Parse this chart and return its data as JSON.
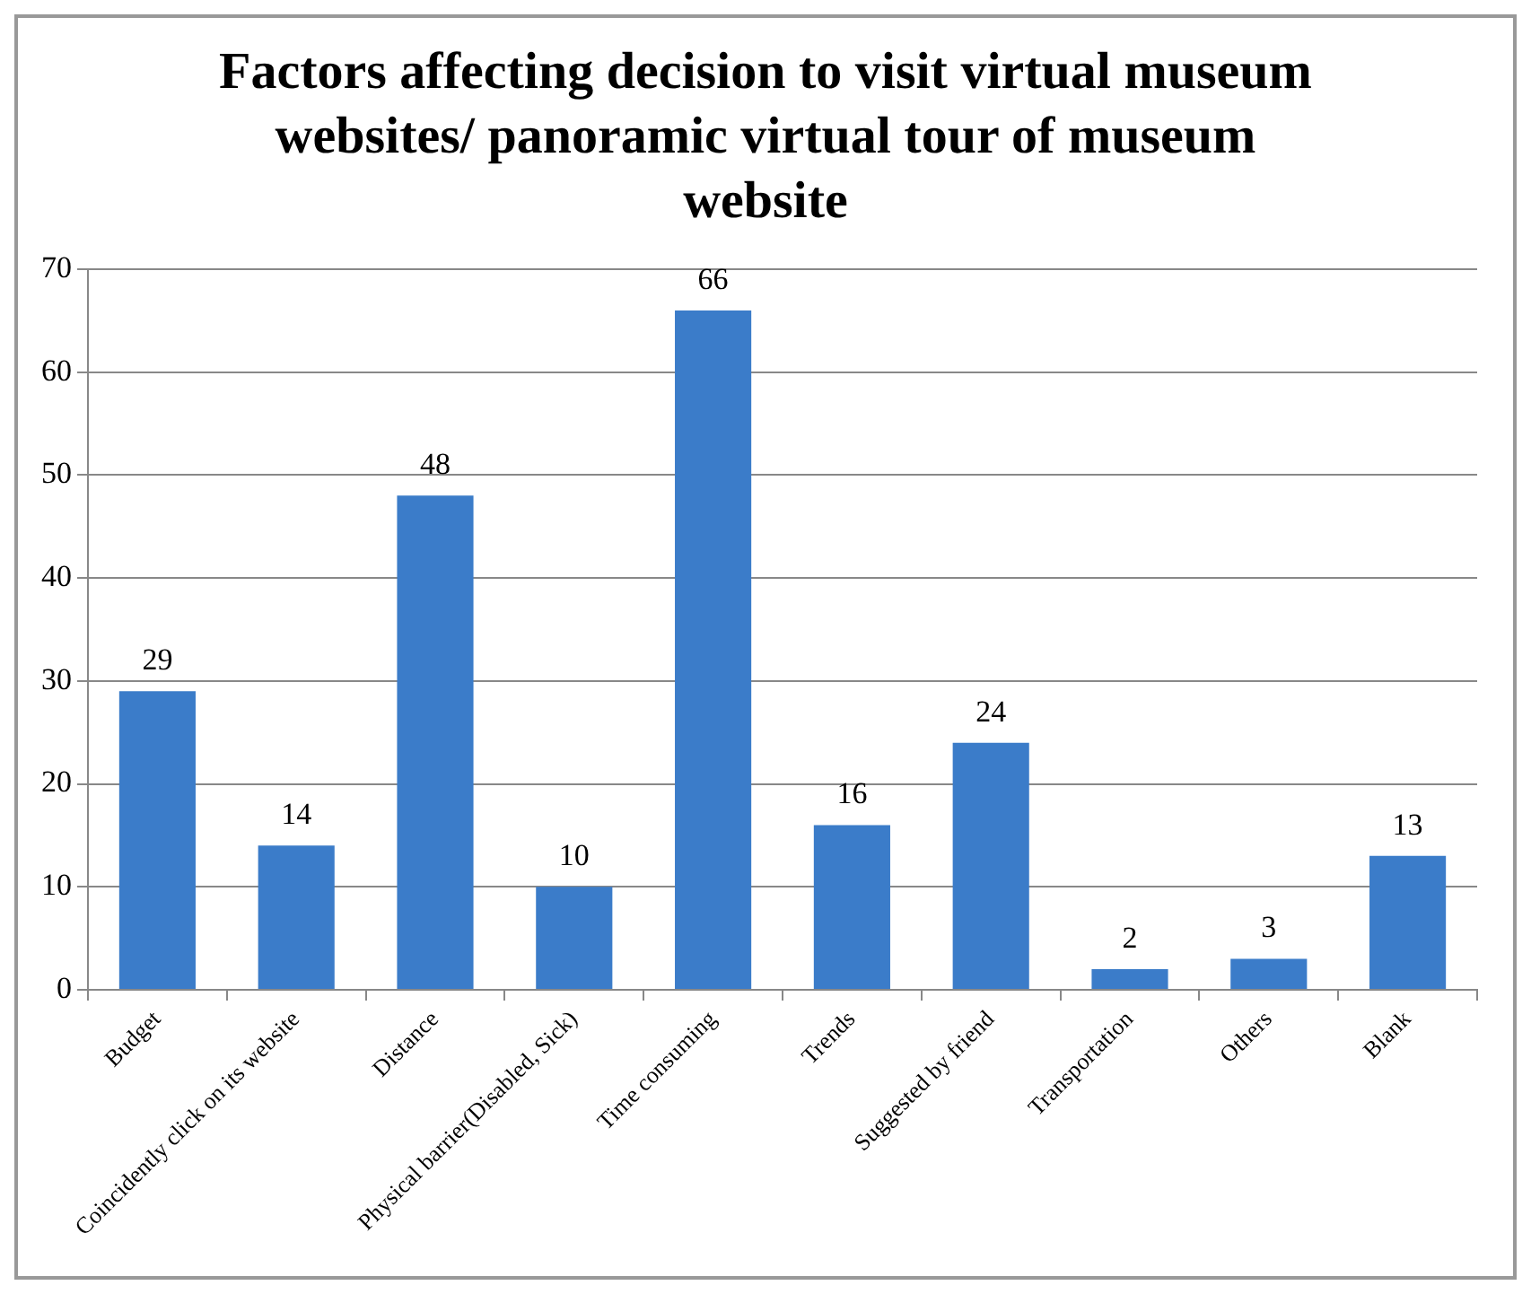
{
  "chart_data": {
    "type": "bar",
    "title": "Factors affecting decision to visit virtual museum websites/ panoramic virtual tour of museum website",
    "categories": [
      "Budget",
      "Coincidently click on its website",
      "Distance",
      "Physical barrier(Disabled, Sick)",
      "Time consuming",
      "Trends",
      "Suggested by friend",
      "Transportation",
      "Others",
      "Blank"
    ],
    "values": [
      29,
      14,
      48,
      10,
      66,
      16,
      24,
      2,
      3,
      13
    ],
    "color": "#3b7cc9",
    "ylim": [
      0,
      70
    ],
    "yticks": [
      0,
      10,
      20,
      30,
      40,
      50,
      60,
      70
    ],
    "grid": "y",
    "data_labels": true
  }
}
